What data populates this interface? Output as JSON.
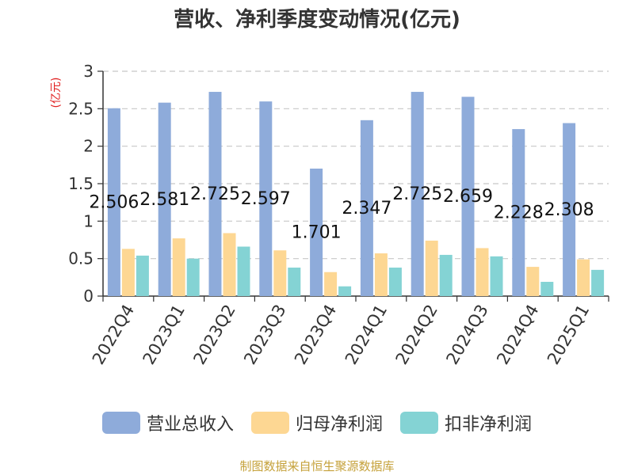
{
  "chart_data": {
    "type": "bar",
    "title": "营收、净利季度变动情况(亿元)",
    "ylabel": "(亿元)",
    "xlabel": "",
    "categories": [
      "2022Q4",
      "2023Q1",
      "2023Q2",
      "2023Q3",
      "2023Q4",
      "2024Q1",
      "2024Q2",
      "2024Q3",
      "2024Q4",
      "2025Q1"
    ],
    "ylim": [
      0,
      3
    ],
    "yticks": [
      "0",
      "0.5",
      "1",
      "1.5",
      "2",
      "2.5",
      "3"
    ],
    "grid": true,
    "legend_position": "bottom",
    "series": [
      {
        "name": "营业总收入",
        "color": "#8eabda",
        "values": [
          2.506,
          2.581,
          2.725,
          2.597,
          1.701,
          2.347,
          2.725,
          2.659,
          2.228,
          2.308
        ],
        "labels": [
          "2.506",
          "2.581",
          "2.725",
          "2.597",
          "1.701",
          "2.347",
          "2.725",
          "2.659",
          "2.228",
          "2.308"
        ]
      },
      {
        "name": "归母净利润",
        "color": "#fdd793",
        "values": [
          0.63,
          0.77,
          0.84,
          0.61,
          0.32,
          0.57,
          0.74,
          0.64,
          0.39,
          0.49
        ]
      },
      {
        "name": "扣非净利润",
        "color": "#84d3d4",
        "values": [
          0.54,
          0.5,
          0.66,
          0.38,
          0.13,
          0.38,
          0.55,
          0.53,
          0.19,
          0.35
        ]
      }
    ]
  },
  "source_text": "制图数据来自恒生聚源数据库"
}
